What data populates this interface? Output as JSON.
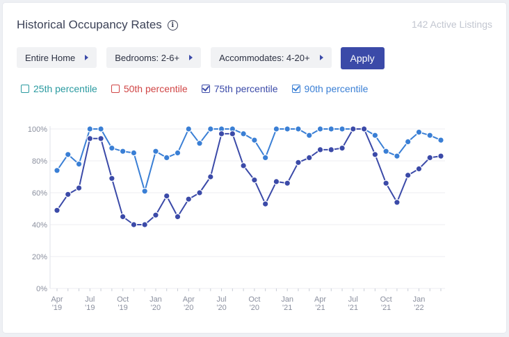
{
  "header": {
    "title": "Historical Occupancy Rates",
    "info_icon": "info-icon",
    "active_listings": "142 Active Listings"
  },
  "filters": {
    "property_type": "Entire Home",
    "bedrooms": "Bedrooms: 2-6+",
    "accommodates": "Accommodates: 4-20+",
    "apply_label": "Apply"
  },
  "legend": [
    {
      "label": "25th percentile",
      "color": "#2a9aa0",
      "checked": false
    },
    {
      "label": "50th percentile",
      "color": "#d04545",
      "checked": false
    },
    {
      "label": "75th percentile",
      "color": "#3b4aa8",
      "checked": true
    },
    {
      "label": "90th percentile",
      "color": "#3a7fd5",
      "checked": true
    }
  ],
  "chart_data": {
    "type": "line",
    "title": "Historical Occupancy Rates",
    "ylim": [
      0,
      100
    ],
    "y_ticks": [
      "0%",
      "20%",
      "40%",
      "60%",
      "80%",
      "100%"
    ],
    "x_tick_labels": [
      {
        "index": 0,
        "line1": "Apr",
        "line2": "'19"
      },
      {
        "index": 3,
        "line1": "Jul",
        "line2": "'19"
      },
      {
        "index": 6,
        "line1": "Oct",
        "line2": "'19"
      },
      {
        "index": 9,
        "line1": "Jan",
        "line2": "'20"
      },
      {
        "index": 12,
        "line1": "Apr",
        "line2": "'20"
      },
      {
        "index": 15,
        "line1": "Jul",
        "line2": "'20"
      },
      {
        "index": 18,
        "line1": "Oct",
        "line2": "'20"
      },
      {
        "index": 21,
        "line1": "Jan",
        "line2": "'21"
      },
      {
        "index": 24,
        "line1": "Apr",
        "line2": "'21"
      },
      {
        "index": 27,
        "line1": "Jul",
        "line2": "'21"
      },
      {
        "index": 30,
        "line1": "Oct",
        "line2": "'21"
      },
      {
        "index": 33,
        "line1": "Jan",
        "line2": "'22"
      }
    ],
    "n_points": 36,
    "series": [
      {
        "name": "90th percentile",
        "color": "#3a7fd5",
        "values": [
          74,
          84,
          78,
          100,
          100,
          88,
          86,
          85,
          61,
          86,
          82,
          85,
          100,
          91,
          100,
          100,
          100,
          97,
          93,
          82,
          100,
          100,
          100,
          96,
          100,
          100,
          100,
          100,
          100,
          96,
          86,
          83,
          92,
          98,
          96,
          93
        ]
      },
      {
        "name": "75th percentile",
        "color": "#3b4aa8",
        "values": [
          49,
          59,
          63,
          94,
          94,
          69,
          45,
          40,
          40,
          46,
          58,
          45,
          56,
          60,
          70,
          97,
          97,
          77,
          68,
          53,
          67,
          66,
          79,
          82,
          87,
          87,
          88,
          100,
          100,
          84,
          66,
          54,
          71,
          75,
          82,
          83
        ]
      }
    ]
  }
}
